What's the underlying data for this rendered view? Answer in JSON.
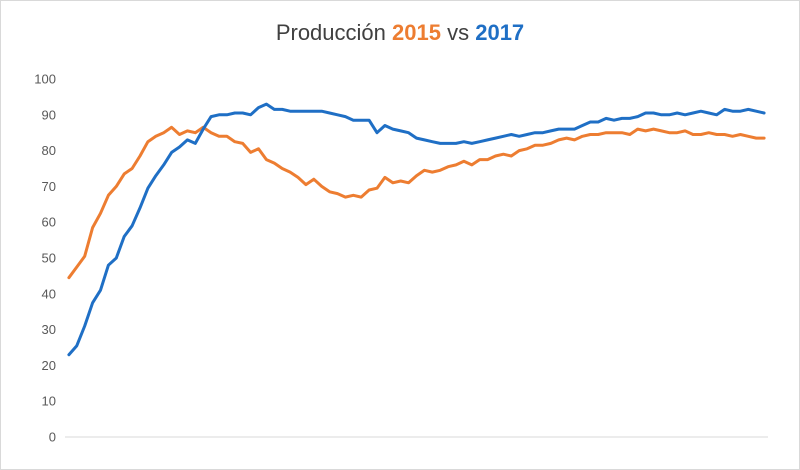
{
  "chart_data": {
    "type": "line",
    "title": {
      "prefix": "Producción",
      "year_a": "2015",
      "mid": "vs",
      "year_b": "2017"
    },
    "xlabel": "",
    "ylabel": "",
    "ylim": [
      0,
      100
    ],
    "yticks": [
      0,
      10,
      20,
      30,
      40,
      50,
      60,
      70,
      80,
      90,
      100
    ],
    "grid": false,
    "legend": "none",
    "x": [
      1,
      2,
      3,
      4,
      5,
      6,
      7,
      8,
      9,
      10,
      11,
      12,
      13,
      14,
      15,
      16,
      17,
      18,
      19,
      20,
      21,
      22,
      23,
      24,
      25,
      26,
      27,
      28,
      29,
      30,
      31,
      32,
      33,
      34,
      35,
      36,
      37,
      38,
      39,
      40,
      41,
      42,
      43,
      44,
      45,
      46,
      47,
      48,
      49,
      50,
      51,
      52,
      53,
      54,
      55,
      56,
      57,
      58,
      59,
      60,
      61,
      62,
      63,
      64,
      65,
      66,
      67,
      68,
      69,
      70,
      71,
      72,
      73,
      74,
      75,
      76,
      77,
      78,
      79,
      80,
      81,
      82,
      83,
      84,
      85,
      86,
      87,
      88,
      89
    ],
    "series": [
      {
        "name": "2015",
        "color": "#ED7D31",
        "values": [
          44.5,
          47.5,
          50.5,
          58.5,
          62.5,
          67.5,
          70.0,
          73.5,
          75.0,
          78.5,
          82.5,
          84.0,
          85.0,
          86.5,
          84.5,
          85.5,
          85.0,
          86.5,
          85.0,
          84.0,
          84.0,
          82.5,
          82.0,
          79.5,
          80.5,
          77.5,
          76.5,
          75.0,
          74.0,
          72.5,
          70.5,
          72.0,
          70.0,
          68.5,
          68.0,
          67.0,
          67.5,
          67.0,
          69.0,
          69.5,
          72.5,
          71.0,
          71.5,
          71.0,
          73.0,
          74.5,
          74.0,
          74.5,
          75.5,
          76.0,
          77.0,
          76.0,
          77.5,
          77.5,
          78.5,
          79.0,
          78.5,
          80.0,
          80.5,
          81.5,
          81.5,
          82.0,
          83.0,
          83.5,
          83.0,
          84.0,
          84.5,
          84.5,
          85.0,
          85.0,
          85.0,
          84.5,
          86.0,
          85.5,
          86.0,
          85.5,
          85.0,
          85.0,
          85.5,
          84.5,
          84.5,
          85.0,
          84.5,
          84.5,
          84.0,
          84.5,
          84.0,
          83.5,
          83.5
        ]
      },
      {
        "name": "2017",
        "color": "#1F6FC5",
        "values": [
          23.0,
          25.5,
          31.0,
          37.5,
          41.0,
          48.0,
          50.0,
          56.0,
          59.0,
          64.0,
          69.5,
          73.0,
          76.0,
          79.5,
          81.0,
          83.0,
          82.0,
          86.0,
          89.5,
          90.0,
          90.0,
          90.5,
          90.5,
          90.0,
          92.0,
          93.0,
          91.5,
          91.5,
          91.0,
          91.0,
          91.0,
          91.0,
          91.0,
          90.5,
          90.0,
          89.5,
          88.5,
          88.5,
          88.5,
          85.0,
          87.0,
          86.0,
          85.5,
          85.0,
          83.5,
          83.0,
          82.5,
          82.0,
          82.0,
          82.0,
          82.5,
          82.0,
          82.5,
          83.0,
          83.5,
          84.0,
          84.5,
          84.0,
          84.5,
          85.0,
          85.0,
          85.5,
          86.0,
          86.0,
          86.0,
          87.0,
          88.0,
          88.0,
          89.0,
          88.5,
          89.0,
          89.0,
          89.5,
          90.5,
          90.5,
          90.0,
          90.0,
          90.5,
          90.0,
          90.5,
          91.0,
          90.5,
          90.0,
          91.5,
          91.0,
          91.0,
          91.5,
          91.0,
          90.5
        ]
      }
    ]
  }
}
